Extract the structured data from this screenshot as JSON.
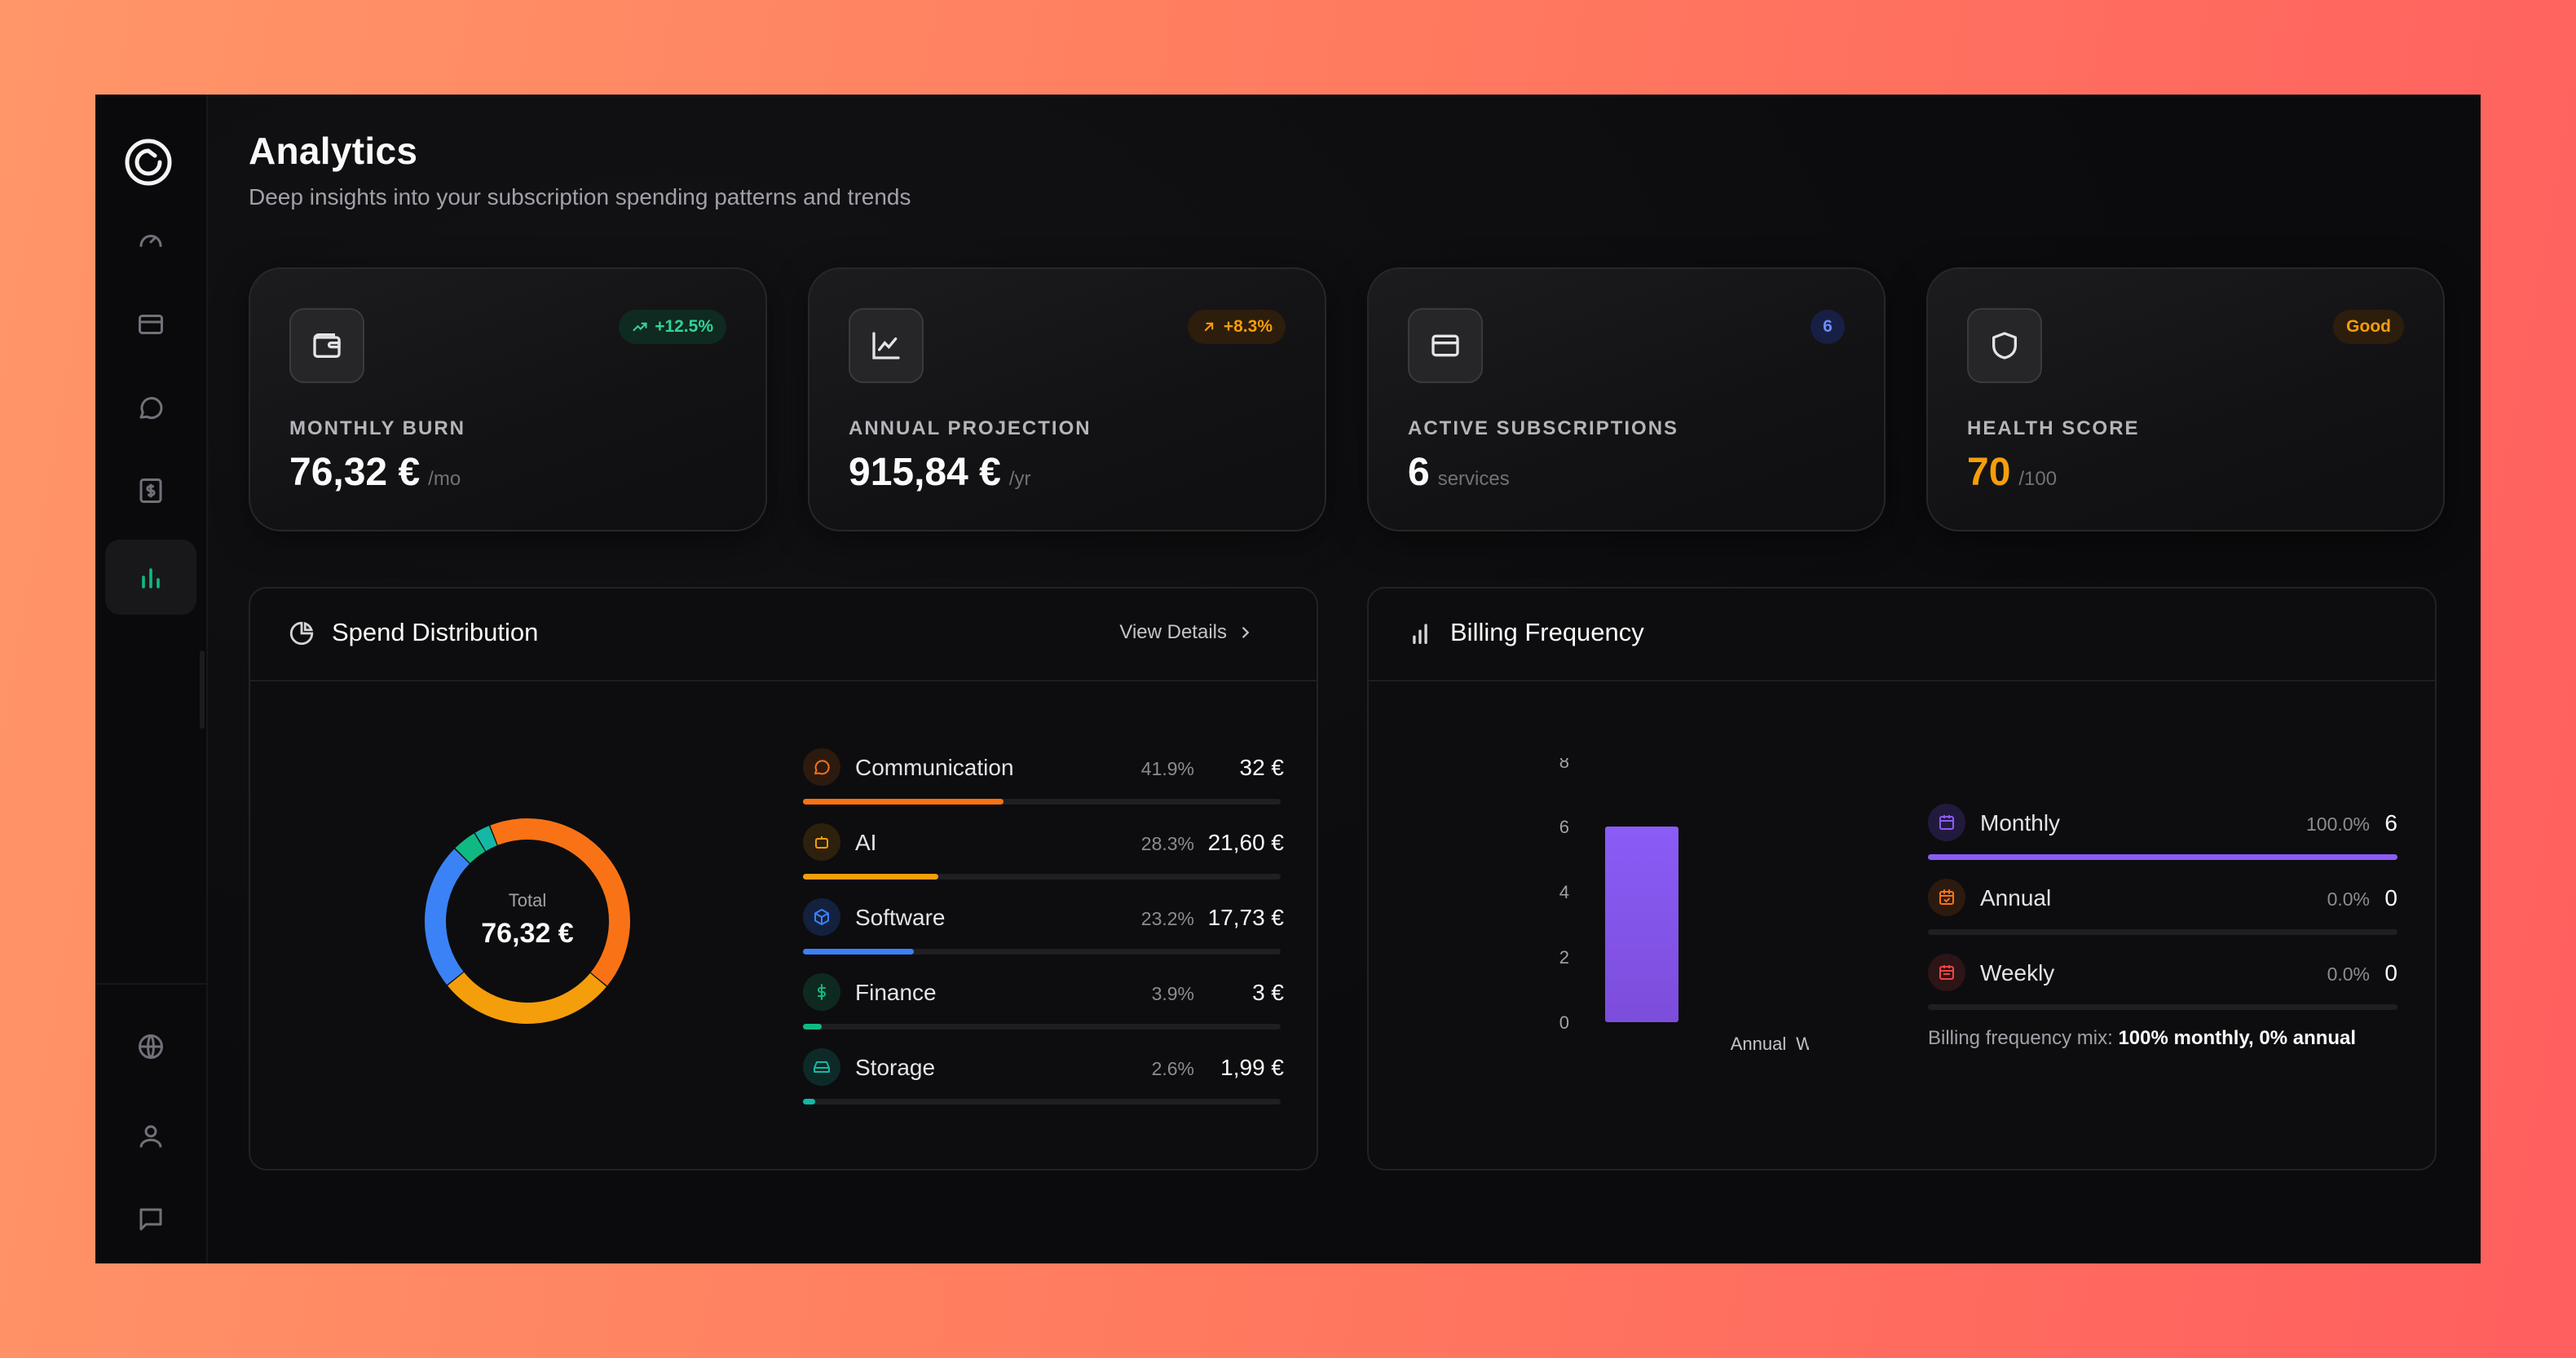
{
  "page": {
    "title": "Analytics",
    "subtitle": "Deep insights into your subscription spending patterns and trends"
  },
  "stats": [
    {
      "label": "MONTHLY BURN",
      "value": "76,32 €",
      "unit": "/mo",
      "badge": "+12.5%",
      "icon": "wallet-icon",
      "badge_icon": "trending-up-icon"
    },
    {
      "label": "ANNUAL PROJECTION",
      "value": "915,84 €",
      "unit": "/yr",
      "badge": "+8.3%",
      "icon": "line-chart-icon",
      "badge_icon": "arrow-up-right-icon"
    },
    {
      "label": "ACTIVE SUBSCRIPTIONS",
      "value": "6",
      "unit": "services",
      "badge": "6",
      "icon": "credit-card-icon"
    },
    {
      "label": "HEALTH SCORE",
      "value": "70",
      "unit": "/100",
      "badge": "Good",
      "icon": "shield-icon"
    }
  ],
  "spend": {
    "title": "Spend Distribution",
    "view_details": "View Details",
    "total_label": "Total",
    "total_value": "76,32 €",
    "categories": [
      {
        "name": "Communication",
        "pct": "41.9%",
        "amount": "32 €",
        "share": 41.9,
        "color": "#f97316",
        "icon": "message-icon"
      },
      {
        "name": "AI",
        "pct": "28.3%",
        "amount": "21,60 €",
        "share": 28.3,
        "color": "#f59e0b",
        "icon": "bot-icon"
      },
      {
        "name": "Software",
        "pct": "23.2%",
        "amount": "17,73 €",
        "share": 23.2,
        "color": "#3b82f6",
        "icon": "box-icon"
      },
      {
        "name": "Finance",
        "pct": "3.9%",
        "amount": "3 €",
        "share": 3.9,
        "color": "#10b981",
        "icon": "dollar-icon"
      },
      {
        "name": "Storage",
        "pct": "2.6%",
        "amount": "1,99 €",
        "share": 2.6,
        "color": "#14b8a6",
        "icon": "hard-drive-icon"
      }
    ]
  },
  "billing": {
    "title": "Billing Frequency",
    "rows": [
      {
        "name": "Monthly",
        "pct": "100.0%",
        "count": "6",
        "share": 100,
        "color": "#8b5cf6",
        "bg": "#221a3d",
        "icon": "calendar-icon"
      },
      {
        "name": "Annual",
        "pct": "0.0%",
        "count": "0",
        "share": 0,
        "color": "#f97316",
        "bg": "#2d1a0e",
        "icon": "calendar-check-icon"
      },
      {
        "name": "Weekly",
        "pct": "0.0%",
        "count": "0",
        "share": 0,
        "color": "#ef4444",
        "bg": "#2d1416",
        "icon": "calendar-days-icon"
      }
    ],
    "mix_prefix": "Billing frequency mix:",
    "mix_value": "100% monthly, 0% annual"
  },
  "chart_data": {
    "type": "bar",
    "categories": [
      "Monthly",
      "Annual",
      "Weekly"
    ],
    "x_tick_labels": [
      "",
      "Annual",
      "Weekly"
    ],
    "values": [
      6,
      0,
      0
    ],
    "ylim": [
      0,
      8
    ],
    "yticks": [
      0,
      2,
      4,
      6,
      8
    ],
    "color": "#8b5cf6",
    "title": "",
    "xlabel": "",
    "ylabel": ""
  },
  "colors": {
    "accent": "#10b981",
    "background": "#0b0b0d"
  }
}
